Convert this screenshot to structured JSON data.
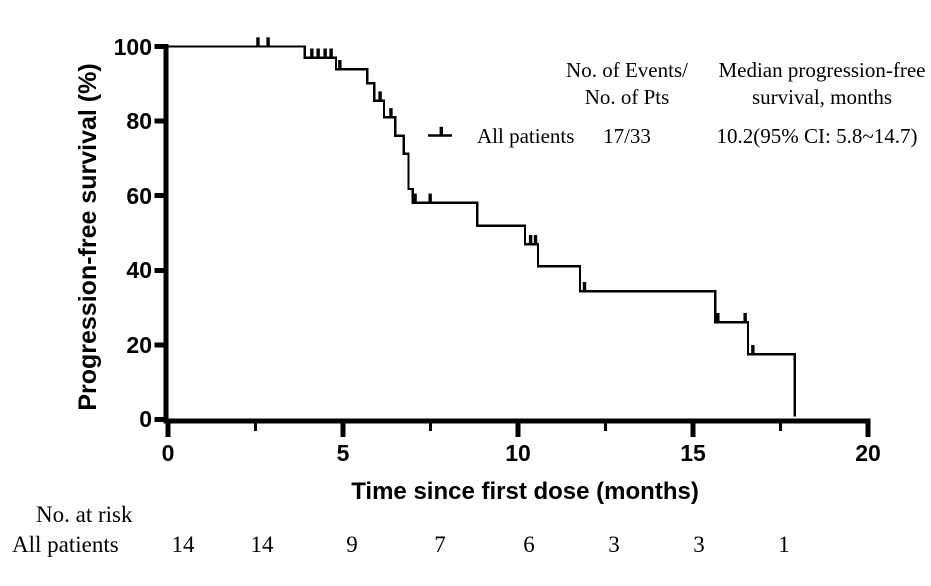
{
  "y_axis": {
    "title": "Progression-free survival (%)",
    "tick_labels": [
      "100",
      "80",
      "60",
      "40",
      "20",
      "0"
    ]
  },
  "x_axis": {
    "title": "Time since first dose (months)",
    "tick_labels": [
      "0",
      "5",
      "10",
      "15",
      "20"
    ]
  },
  "legend": {
    "events_header_line1": "No. of Events/",
    "events_header_line2": "No. of Pts",
    "median_header_line1": "Median progression-free",
    "median_header_line2": "survival, months",
    "series_label": "All patients",
    "events_value": "17/33",
    "median_value": "10.2(95% CI: 5.8~14.7)"
  },
  "risk_table": {
    "header": "No. at risk",
    "row_label": "All patients",
    "values": [
      "14",
      "14",
      "9",
      "7",
      "6",
      "3",
      "3",
      "1"
    ]
  },
  "chart_data": {
    "type": "line",
    "subtype": "kaplan-meier-step",
    "title": "",
    "xlabel": "Time since first dose (months)",
    "ylabel": "Progression-free survival (%)",
    "xlim": [
      0,
      20
    ],
    "ylim": [
      0,
      100
    ],
    "x_major_ticks": [
      0,
      5,
      10,
      15,
      20
    ],
    "x_minor_ticks": [
      2.5,
      7.5,
      12.5,
      17.5
    ],
    "y_major_ticks": [
      0,
      20,
      40,
      60,
      80,
      100
    ],
    "grid": false,
    "legend_position": "top-right-inside",
    "series": [
      {
        "name": "All patients",
        "events_over_pts": "17/33",
        "median_pfs_months": 10.2,
        "median_pfs_ci95": [
          5.8,
          14.7
        ],
        "steps_time_pct": [
          [
            0,
            100
          ],
          [
            3.91,
            97.0
          ],
          [
            4.8,
            93.9
          ],
          [
            5.69,
            90.1
          ],
          [
            5.89,
            85.5
          ],
          [
            6.17,
            81.0
          ],
          [
            6.49,
            76.1
          ],
          [
            6.74,
            71.2
          ],
          [
            6.87,
            61.8
          ],
          [
            6.99,
            58.1
          ],
          [
            8.83,
            51.9
          ],
          [
            10.2,
            47.0
          ],
          [
            10.57,
            41.1
          ],
          [
            11.77,
            34.4
          ],
          [
            15.63,
            26.1
          ],
          [
            16.57,
            17.5
          ],
          [
            17.91,
            0.8
          ]
        ],
        "censor_marks_time_pct": [
          [
            2.57,
            100
          ],
          [
            2.86,
            100
          ],
          [
            4.11,
            97.0
          ],
          [
            4.29,
            97.0
          ],
          [
            4.49,
            97.0
          ],
          [
            4.66,
            97.0
          ],
          [
            4.91,
            93.9
          ],
          [
            6.06,
            85.5
          ],
          [
            6.37,
            81.0
          ],
          [
            7.06,
            58.1
          ],
          [
            7.49,
            58.1
          ],
          [
            10.36,
            47.0
          ],
          [
            10.5,
            47.0
          ],
          [
            11.9,
            34.4
          ],
          [
            15.71,
            26.1
          ],
          [
            16.49,
            26.1
          ],
          [
            16.71,
            17.5
          ]
        ]
      }
    ],
    "at_risk": {
      "times": [
        0,
        2.5,
        5,
        7.5,
        10,
        12.5,
        15,
        17.5
      ],
      "all_patients": [
        14,
        14,
        9,
        7,
        6,
        3,
        3,
        1
      ]
    },
    "colors": {
      "line": "#000000",
      "background": "#ffffff"
    }
  }
}
